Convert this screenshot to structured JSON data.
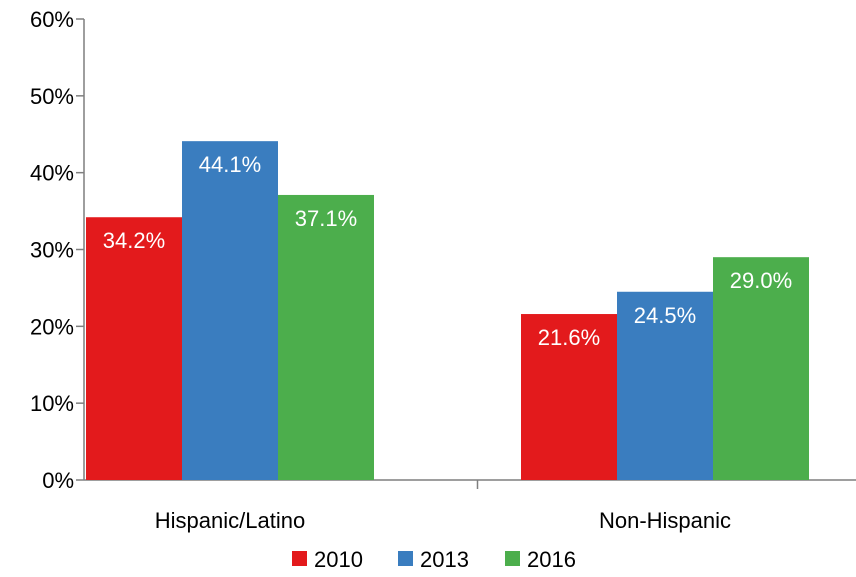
{
  "chart_data": {
    "type": "bar",
    "categories": [
      "Hispanic/Latino",
      "Non-Hispanic"
    ],
    "series": [
      {
        "name": "2010",
        "color": "#e31a1c",
        "values": [
          34.2,
          21.6
        ],
        "labels": [
          "34.2%",
          "21.6%"
        ]
      },
      {
        "name": "2013",
        "color": "#3a7dbf",
        "values": [
          44.1,
          24.5
        ],
        "labels": [
          "44.1%",
          "24.5%"
        ]
      },
      {
        "name": "2016",
        "color": "#4cae4c",
        "values": [
          37.1,
          29.0
        ],
        "labels": [
          "37.1%",
          "29.0%"
        ]
      }
    ],
    "ylim": [
      0,
      60
    ],
    "yticks": [
      0,
      10,
      20,
      30,
      40,
      50,
      60
    ],
    "ytick_labels": [
      "0%",
      "10%",
      "20%",
      "30%",
      "40%",
      "50%",
      "60%"
    ],
    "grid": false,
    "legend_position": "bottom",
    "title": "",
    "xlabel": "",
    "ylabel": ""
  }
}
